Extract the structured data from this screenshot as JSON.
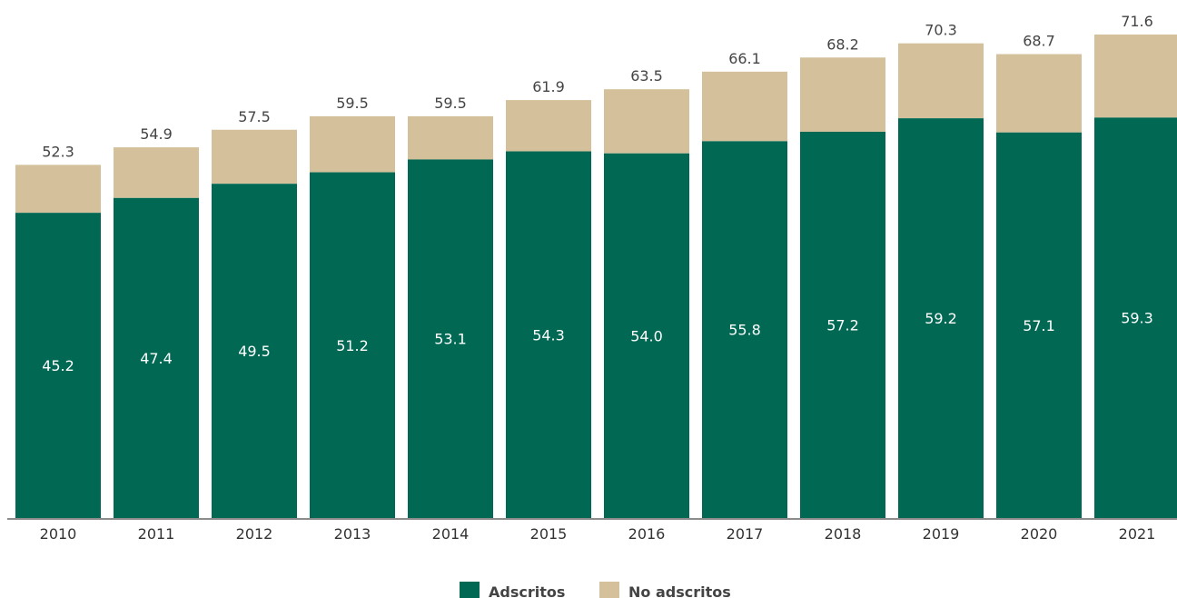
{
  "chart_data": {
    "type": "bar",
    "stacked": true,
    "categories": [
      "2010",
      "2011",
      "2012",
      "2013",
      "2014",
      "2015",
      "2016",
      "2017",
      "2018",
      "2019",
      "2020",
      "2021"
    ],
    "series": [
      {
        "name": "Adscritos",
        "color": "#006853",
        "values": [
          45.2,
          47.4,
          49.5,
          51.2,
          53.1,
          54.3,
          54.0,
          55.8,
          57.2,
          59.2,
          57.1,
          59.3
        ]
      },
      {
        "name": "No adscritos",
        "color": "#d4c19c",
        "values": [
          7.1,
          7.5,
          8.0,
          8.3,
          6.4,
          7.6,
          9.5,
          10.3,
          11.0,
          11.1,
          11.6,
          12.3
        ]
      }
    ],
    "totals": [
      52.3,
      54.9,
      57.5,
      59.5,
      59.5,
      61.9,
      63.5,
      66.1,
      68.2,
      70.3,
      68.7,
      71.6
    ],
    "total_labels": [
      "52.3",
      "54.9",
      "57.5",
      "59.5",
      "59.5",
      "61.9",
      "63.5",
      "66.1",
      "68.2",
      "70.3",
      "68.7",
      "71.6"
    ],
    "inner_labels": [
      "45.2",
      "47.4",
      "49.5",
      "51.2",
      "53.1",
      "54.3",
      "54.0",
      "55.8",
      "57.2",
      "59.2",
      "57.1",
      "59.3"
    ],
    "ylim": [
      0,
      75
    ],
    "grid": false,
    "legend": "bottom-center",
    "axis_color": "#666666"
  }
}
